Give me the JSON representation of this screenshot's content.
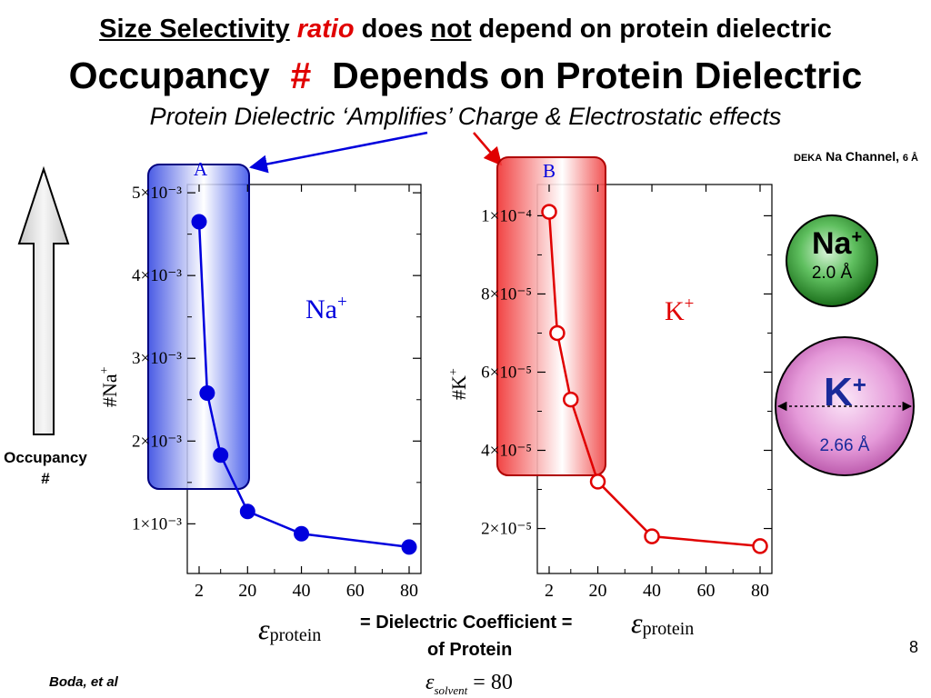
{
  "header": {
    "line1": {
      "part1": "Size Selectivity",
      "part2": "ratio",
      "part3": "does",
      "part4": "not",
      "part5": "depend on protein dielectric"
    },
    "line2": {
      "part1": "Occupancy",
      "part2": "#",
      "part3": "Depends on Protein Dielectric"
    },
    "line3": "Protein Dielectric ‘Amplifies’ Charge & Electrostatic effects"
  },
  "model": {
    "prefix": "DEKA",
    "name": "Na Channel,",
    "size": "6 Å"
  },
  "occupancy_label": {
    "line1": "Occupancy",
    "line2": "#"
  },
  "ions": {
    "na": {
      "symbol": "Na",
      "charge": "+",
      "radius": "2.0 Å",
      "color": "#1e8a1e"
    },
    "k": {
      "symbol": "K",
      "charge": "+",
      "radius": "2.66 Å",
      "color": "#d25fc2"
    }
  },
  "caption": {
    "eps": "ε",
    "sub": "protein",
    "middle": "= Dielectric Coefficient =",
    "line2": "of Protein",
    "solvent_eps": "ε",
    "solvent_sub": "solvent",
    "solvent_eq": "= 80"
  },
  "page_number": "8",
  "credit": "Boda, et al",
  "chart_data": [
    {
      "type": "line",
      "panel": "A",
      "ion_label": "Na",
      "ion_charge": "+",
      "ylabel": "#Na",
      "ylabel_sup": "+",
      "x": [
        2,
        5,
        10,
        20,
        40,
        80
      ],
      "x_tick_labels": [
        "2",
        "20",
        "40",
        "60",
        "80"
      ],
      "y": [
        0.00465,
        0.00258,
        0.00183,
        0.00115,
        0.00088,
        0.00072
      ],
      "y_tick_labels": [
        "1×10⁻³",
        "2×10⁻³",
        "3×10⁻³",
        "4×10⁻³",
        "5×10⁻³"
      ],
      "ylim": [
        0.0004,
        0.0051
      ],
      "color": "#0000dd",
      "marker": "filled"
    },
    {
      "type": "line",
      "panel": "B",
      "ion_label": "K",
      "ion_charge": "+",
      "ylabel": "#K",
      "ylabel_sup": "+",
      "x": [
        2,
        5,
        10,
        20,
        40,
        80
      ],
      "x_tick_labels": [
        "2",
        "20",
        "40",
        "60",
        "80"
      ],
      "y": [
        0.000101,
        7e-05,
        5.3e-05,
        3.2e-05,
        1.8e-05,
        1.55e-05
      ],
      "y_tick_labels": [
        "2×10⁻⁵",
        "4×10⁻⁵",
        "6×10⁻⁵",
        "8×10⁻⁵",
        "1×10⁻⁴"
      ],
      "ylim": [
        8.5e-06,
        0.000108
      ],
      "color": "#e00000",
      "marker": "open"
    }
  ]
}
